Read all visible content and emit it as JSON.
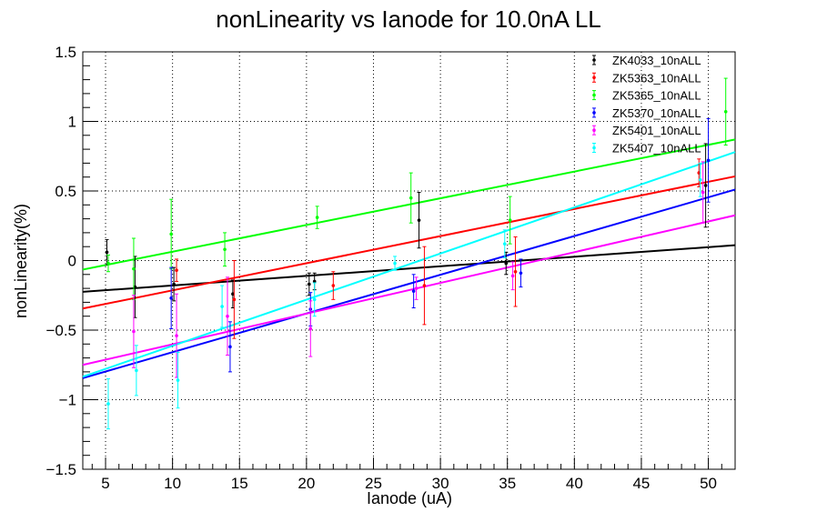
{
  "chart_data": {
    "type": "scatter",
    "title": "nonLinearity vs Ianode for 10.0nA LL",
    "xlabel": "Ianode (uA)",
    "ylabel": "nonLinearity(%)",
    "xlim": [
      3.3,
      52.0
    ],
    "ylim": [
      -1.5,
      1.5
    ],
    "xticks": [
      5,
      10,
      15,
      20,
      25,
      30,
      35,
      40,
      45,
      50
    ],
    "yticks": [
      -1.5,
      -1,
      -0.5,
      0,
      0.5,
      1,
      1.5
    ],
    "ytick_labels": [
      "−1.5",
      "−1",
      "−0.5",
      "0",
      "0.5",
      "1",
      "1.5"
    ],
    "grid": true,
    "legend_position": "top-right",
    "series": [
      {
        "name": "ZK4033_10nALL",
        "color": "#000000",
        "points": [
          [
            5.1,
            0.06,
            0.09
          ],
          [
            7.2,
            -0.19,
            0.22
          ],
          [
            10.1,
            -0.17,
            0.12
          ],
          [
            14.5,
            -0.24,
            0.1
          ],
          [
            20.2,
            -0.17,
            0.08
          ],
          [
            20.6,
            -0.15,
            0.06
          ],
          [
            28.4,
            0.29,
            0.2
          ],
          [
            34.9,
            -0.02,
            0.08
          ],
          [
            49.8,
            0.54,
            0.3
          ]
        ],
        "fit": [
          [
            3.3,
            -0.225
          ],
          [
            52.0,
            0.11
          ]
        ]
      },
      {
        "name": "ZK5363_10nALL",
        "color": "#ff0000",
        "points": [
          [
            10.3,
            -0.07,
            0.08
          ],
          [
            14.6,
            -0.28,
            0.28
          ],
          [
            22.0,
            -0.18,
            0.1
          ],
          [
            28.8,
            -0.18,
            0.28
          ],
          [
            35.6,
            -0.08,
            0.25
          ],
          [
            49.3,
            0.63,
            0.1
          ]
        ],
        "fit": [
          [
            3.3,
            -0.345
          ],
          [
            52.0,
            0.605
          ]
        ]
      },
      {
        "name": "ZK5365_10nALL",
        "color": "#00ff00",
        "points": [
          [
            5.2,
            -0.02,
            0.06
          ],
          [
            7.1,
            -0.06,
            0.22
          ],
          [
            9.9,
            0.19,
            0.25
          ],
          [
            13.9,
            0.08,
            0.12
          ],
          [
            20.8,
            0.31,
            0.08
          ],
          [
            27.8,
            0.45,
            0.18
          ],
          [
            35.2,
            0.29,
            0.17
          ],
          [
            51.3,
            1.07,
            0.24
          ]
        ],
        "fit": [
          [
            3.3,
            -0.065
          ],
          [
            52.0,
            0.87
          ]
        ]
      },
      {
        "name": "ZK5370_10nALL",
        "color": "#0000ff",
        "points": [
          [
            9.9,
            -0.27,
            0.22
          ],
          [
            14.3,
            -0.62,
            0.18
          ],
          [
            20.3,
            -0.35,
            0.12
          ],
          [
            28.0,
            -0.22,
            0.12
          ],
          [
            36.0,
            -0.09,
            0.1
          ],
          [
            50.0,
            0.72,
            0.3
          ]
        ],
        "fit": [
          [
            3.3,
            -0.845
          ],
          [
            52.0,
            0.51
          ]
        ]
      },
      {
        "name": "ZK5401_10nALL",
        "color": "#ff00ff",
        "points": [
          [
            7.1,
            -0.51,
            0.26
          ],
          [
            10.3,
            -0.54,
            0.3
          ],
          [
            14.1,
            -0.4,
            0.28
          ],
          [
            20.3,
            -0.49,
            0.2
          ],
          [
            28.2,
            -0.2,
            0.08
          ],
          [
            35.4,
            -0.11,
            0.1
          ],
          [
            49.6,
            0.49,
            0.22
          ]
        ],
        "fit": [
          [
            3.3,
            -0.75
          ],
          [
            52.0,
            0.325
          ]
        ]
      },
      {
        "name": "ZK5407_10nALL",
        "color": "#00ffff",
        "points": [
          [
            5.2,
            -1.03,
            0.18
          ],
          [
            7.3,
            -0.79,
            0.18
          ],
          [
            10.4,
            -0.86,
            0.2
          ],
          [
            13.7,
            -0.33,
            0.15
          ],
          [
            20.6,
            -0.28,
            0.12
          ],
          [
            26.6,
            -0.02,
            0.05
          ],
          [
            34.8,
            0.12,
            0.1
          ],
          [
            49.4,
            0.58,
            0.12
          ]
        ],
        "fit": [
          [
            3.3,
            -0.835
          ],
          [
            52.0,
            0.78
          ]
        ]
      }
    ]
  }
}
